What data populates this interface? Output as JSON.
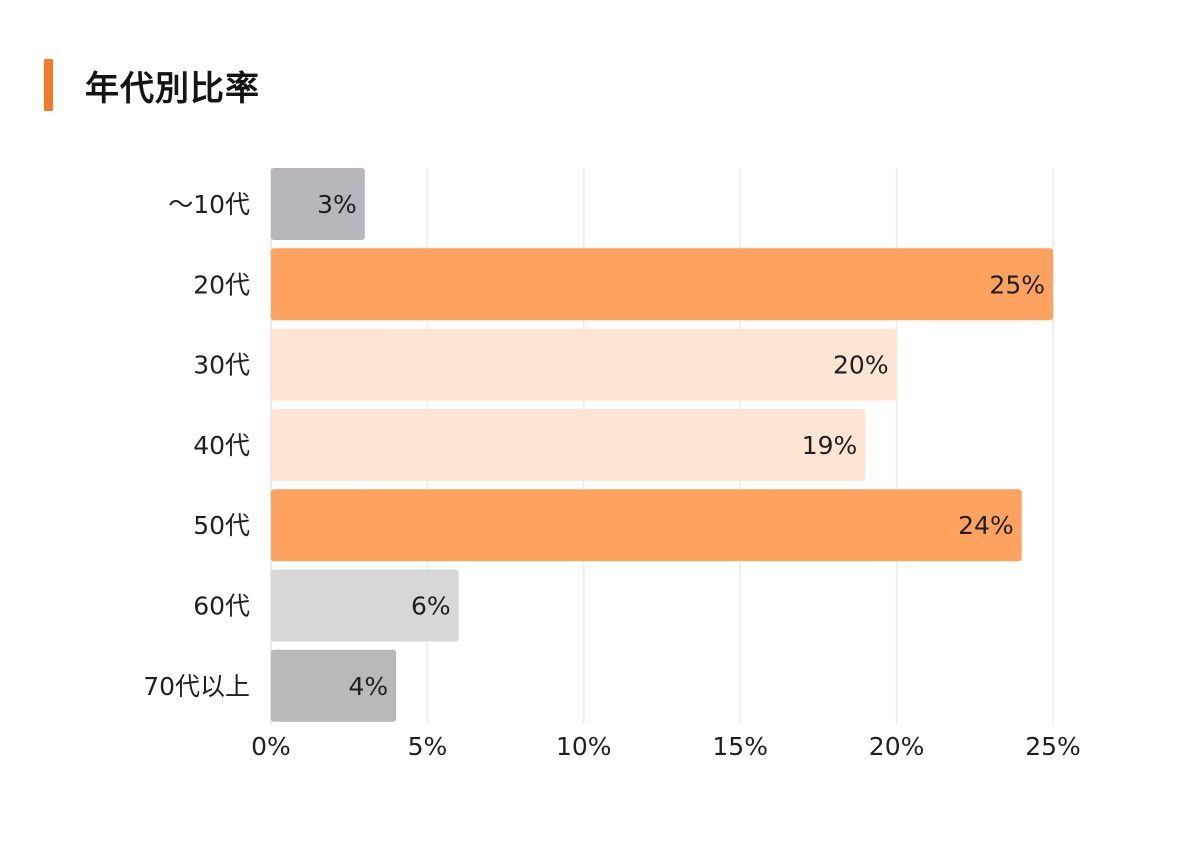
{
  "title": "年代別比率",
  "colors": {
    "accent": "#f47a2a",
    "grid": "#ececef"
  },
  "chart_data": {
    "type": "bar",
    "orientation": "horizontal",
    "title": "年代別比率",
    "categories": [
      "〜10代",
      "20代",
      "30代",
      "40代",
      "50代",
      "60代",
      "70代以上"
    ],
    "values": [
      3,
      25,
      20,
      19,
      24,
      6,
      4
    ],
    "value_labels": [
      "3%",
      "25%",
      "20%",
      "19%",
      "24%",
      "6%",
      "4%"
    ],
    "bar_colors": [
      "#b8b5bc",
      "#fda35f",
      "#fee4d2",
      "#fee4d2",
      "#fda35f",
      "#d9d6d8",
      "#bbb8b9"
    ],
    "xlim": [
      0,
      25
    ],
    "xticks": [
      0,
      5,
      10,
      15,
      20,
      25
    ],
    "xtick_labels": [
      "0%",
      "5%",
      "10%",
      "15%",
      "20%",
      "25%"
    ],
    "grid": true,
    "xlabel": "",
    "ylabel": ""
  }
}
